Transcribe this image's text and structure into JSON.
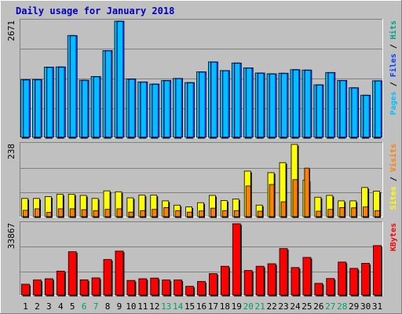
{
  "chart_data": {
    "type": "bar",
    "title": "Daily usage for January 2018",
    "categories": [
      "1",
      "2",
      "3",
      "4",
      "5",
      "6",
      "7",
      "8",
      "9",
      "10",
      "11",
      "12",
      "13",
      "14",
      "15",
      "16",
      "17",
      "18",
      "19",
      "20",
      "21",
      "22",
      "23",
      "24",
      "25",
      "26",
      "27",
      "28",
      "29",
      "30",
      "31"
    ],
    "weekend_days": [
      "6",
      "7",
      "13",
      "14",
      "20",
      "21",
      "27",
      "28"
    ],
    "panels": [
      {
        "name": "hits-files-panel",
        "max_label": "2671",
        "ymax": 2671,
        "legend": [
          {
            "text": "Pages",
            "color": "#00c0ff"
          },
          {
            "text": " / ",
            "color": "#000000"
          },
          {
            "text": "Files",
            "color": "#0040ff"
          },
          {
            "text": " / ",
            "color": "#000000"
          },
          {
            "text": "Hits",
            "color": "#00a080"
          }
        ],
        "series": [
          {
            "name": "Hits",
            "color": "#00c0ff",
            "values": [
              1325,
              1330,
              1615,
              1620,
              2342,
              1315,
              1400,
              1996,
              2671,
              1342,
              1275,
              1226,
              1308,
              1355,
              1260,
              1507,
              1735,
              1536,
              1710,
              1599,
              1480,
              1462,
              1475,
              1557,
              1548,
              1209,
              1492,
              1310,
              1141,
              970,
              1302
            ]
          },
          {
            "name": "Files",
            "color": "#0040ff",
            "values": [
              1325,
              1330,
              1615,
              1620,
              2342,
              1315,
              1400,
              1996,
              2671,
              1342,
              1275,
              1226,
              1308,
              1355,
              1260,
              1507,
              1735,
              1536,
              1710,
              1599,
              1480,
              1462,
              1475,
              1557,
              1548,
              1209,
              1492,
              1310,
              1141,
              970,
              1302
            ]
          }
        ]
      },
      {
        "name": "visits-sites-panel",
        "max_label": "238",
        "ymax": 238,
        "legend": [
          {
            "text": "Sites",
            "color": "#ffff00"
          },
          {
            "text": " / ",
            "color": "#000000"
          },
          {
            "text": "Visits",
            "color": "#ff8000"
          }
        ],
        "series": [
          {
            "name": "Visits",
            "color": "#ffff00",
            "values": [
              60,
              60,
              66,
              74,
              74,
              70,
              60,
              85,
              82,
              62,
              71,
              71,
              52,
              38,
              32,
              46,
              70,
              53,
              58,
              150,
              38,
              145,
              178,
              238,
              120,
              64,
              70,
              52,
              52,
              96,
              84
            ]
          },
          {
            "name": "Sites",
            "color": "#ff8000",
            "values": [
              21,
              26,
              14,
              26,
              26,
              23,
              20,
              24,
              26,
              15,
              20,
              24,
              30,
              20,
              15,
              19,
              28,
              20,
              20,
              101,
              18,
              106,
              49,
              122,
              160,
              18,
              24,
              30,
              29,
              32,
              20
            ]
          }
        ]
      },
      {
        "name": "kbytes-panel",
        "max_label": "33867",
        "ymax": 33867,
        "legend": [
          {
            "text": "KBytes",
            "color": "#ff0000"
          }
        ],
        "series": [
          {
            "name": "KBytes",
            "color": "#ff0000",
            "values": [
              5200,
              7200,
              7800,
              11400,
              20600,
              7300,
              8200,
              16900,
              20900,
              7000,
              7800,
              8100,
              7200,
              7200,
              4200,
              6500,
              10200,
              13700,
              33867,
              11700,
              13700,
              14900,
              22100,
              13100,
              17900,
              5600,
              7900,
              15700,
              12700,
              15100,
              23500
            ]
          }
        ]
      }
    ]
  }
}
